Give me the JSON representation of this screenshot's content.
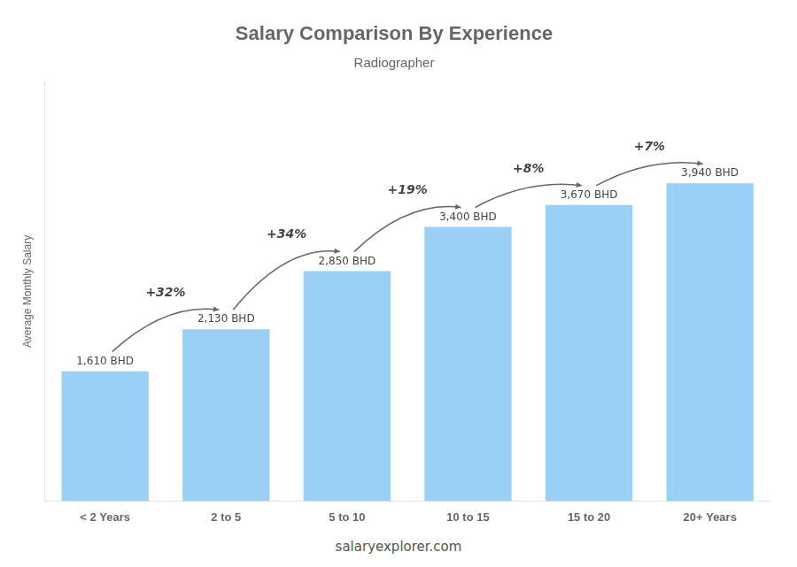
{
  "chart_data": {
    "type": "bar",
    "title": "Salary Comparison By Experience",
    "subtitle": "Radiographer",
    "ylabel": "Average Monthly Salary",
    "categories": [
      "< 2 Years",
      "2 to 5",
      "5 to 10",
      "10 to 15",
      "15 to 20",
      "20+ Years"
    ],
    "values": [
      1610,
      2130,
      2850,
      3400,
      3670,
      3940
    ],
    "value_labels": [
      "1,610 BHD",
      "2,130 BHD",
      "2,850 BHD",
      "3,400 BHD",
      "3,670 BHD",
      "3,940 BHD"
    ],
    "data_labels": true,
    "annotations": [
      "+32%",
      "+34%",
      "+19%",
      "+8%",
      "+7%"
    ],
    "footer": "salaryexplorer.com",
    "ylim": [
      0,
      5200
    ],
    "grid": false,
    "tick_labels": "x"
  }
}
